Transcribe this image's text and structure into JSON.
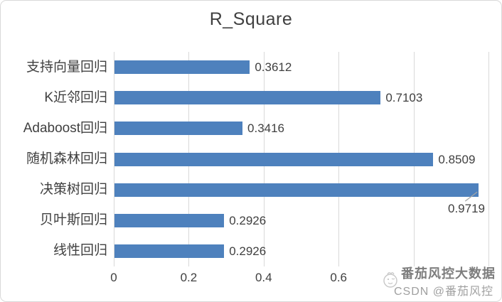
{
  "colors": {
    "bar": "#4e81bd",
    "gridline": "#d9d9d9",
    "border": "#d9d9d9",
    "text": "#404040",
    "leader_line": "#a6a6a6",
    "watermark": "#8f8f8f",
    "background": "#ffffff"
  },
  "watermark": {
    "logo": "tomato-doodle-icon",
    "line1": "番茄风控大数据",
    "line2": "CSDN @番茄风控"
  },
  "chart_data": {
    "type": "bar",
    "orientation": "horizontal",
    "title": "R_Square",
    "categories": [
      "支持向量回归",
      "K近邻回归",
      "Adaboost回归",
      "随机森林回归",
      "决策树回归",
      "贝叶斯回归",
      "线性回归"
    ],
    "values": [
      0.3612,
      0.7103,
      0.3416,
      0.8509,
      0.9719,
      0.2926,
      0.2926
    ],
    "value_labels": [
      "0.3612",
      "0.7103",
      "0.3416",
      "0.8509",
      "0.9719",
      "0.2926",
      "0.2926"
    ],
    "xlabel": "",
    "ylabel": "",
    "xlim": [
      0,
      1
    ],
    "gridline_values": [
      0,
      0.2,
      0.4,
      0.6,
      0.8,
      1.0
    ],
    "xtick_labels": [
      "0",
      "0.2",
      "0.4",
      "0.6"
    ],
    "grid": true,
    "legend": false,
    "callout_index": 4
  }
}
